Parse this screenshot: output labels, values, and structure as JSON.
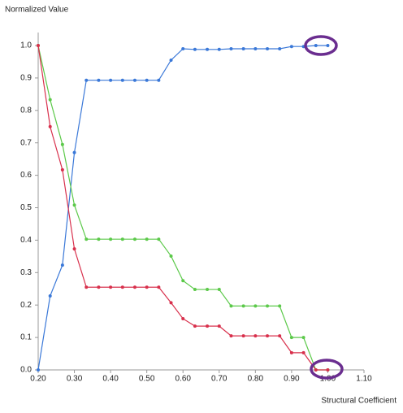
{
  "chart_data": {
    "type": "line",
    "y_label": "Normalized Value",
    "x_label": "Structural Coefficient",
    "x": [
      0.2,
      0.233,
      0.267,
      0.3,
      0.333,
      0.367,
      0.4,
      0.433,
      0.467,
      0.5,
      0.533,
      0.567,
      0.6,
      0.633,
      0.667,
      0.7,
      0.733,
      0.767,
      0.8,
      0.833,
      0.867,
      0.9,
      0.933,
      0.967,
      1.0
    ],
    "series": [
      {
        "color": "#3a78d8",
        "values": [
          0,
          0.228,
          0.323,
          0.67,
          0.893,
          0.893,
          0.893,
          0.893,
          0.893,
          0.893,
          0.893,
          0.955,
          0.99,
          0.988,
          0.988,
          0.988,
          0.99,
          0.99,
          0.99,
          0.99,
          0.99,
          0.997,
          0.997,
          1.0,
          1.0
        ]
      },
      {
        "color": "#5cc94a",
        "values": [
          1.0,
          0.833,
          0.695,
          0.508,
          0.403,
          0.403,
          0.403,
          0.403,
          0.403,
          0.403,
          0.403,
          0.351,
          0.275,
          0.248,
          0.248,
          0.248,
          0.197,
          0.197,
          0.197,
          0.197,
          0.197,
          0.1,
          0.1,
          0,
          0
        ]
      },
      {
        "color": "#d8304c",
        "values": [
          1.0,
          0.75,
          0.617,
          0.373,
          0.255,
          0.255,
          0.255,
          0.255,
          0.255,
          0.255,
          0.255,
          0.207,
          0.158,
          0.135,
          0.135,
          0.135,
          0.105,
          0.105,
          0.105,
          0.105,
          0.105,
          0.053,
          0.053,
          0,
          0
        ]
      }
    ],
    "xlim": [
      0.2,
      1.1
    ],
    "xticks": [
      {
        "value": 0.2,
        "label": "0.20"
      },
      {
        "value": 0.3,
        "label": "0.30"
      },
      {
        "value": 0.4,
        "label": "0.40"
      },
      {
        "value": 0.5,
        "label": "0.50"
      },
      {
        "value": 0.6,
        "label": "0.60"
      },
      {
        "value": 0.7,
        "label": "0.70"
      },
      {
        "value": 0.8,
        "label": "0.80"
      },
      {
        "value": 0.9,
        "label": "0.90"
      },
      {
        "value": 1.0,
        "label": "1.00"
      },
      {
        "value": 1.1,
        "label": "1.10"
      }
    ],
    "ylim": [
      0,
      1.0
    ],
    "yticks": [
      {
        "value": 0,
        "label": "0.0"
      },
      {
        "value": 0.1,
        "label": "0.1"
      },
      {
        "value": 0.2,
        "label": "0.2"
      },
      {
        "value": 0.3,
        "label": "0.3"
      },
      {
        "value": 0.4,
        "label": "0.4"
      },
      {
        "value": 0.5,
        "label": "0.5"
      },
      {
        "value": 0.6,
        "label": "0.6"
      },
      {
        "value": 0.7,
        "label": "0.7"
      },
      {
        "value": 0.8,
        "label": "0.8"
      },
      {
        "value": 0.9,
        "label": "0.9"
      },
      {
        "value": 1.0,
        "label": "1.0"
      }
    ],
    "grid": false
  }
}
